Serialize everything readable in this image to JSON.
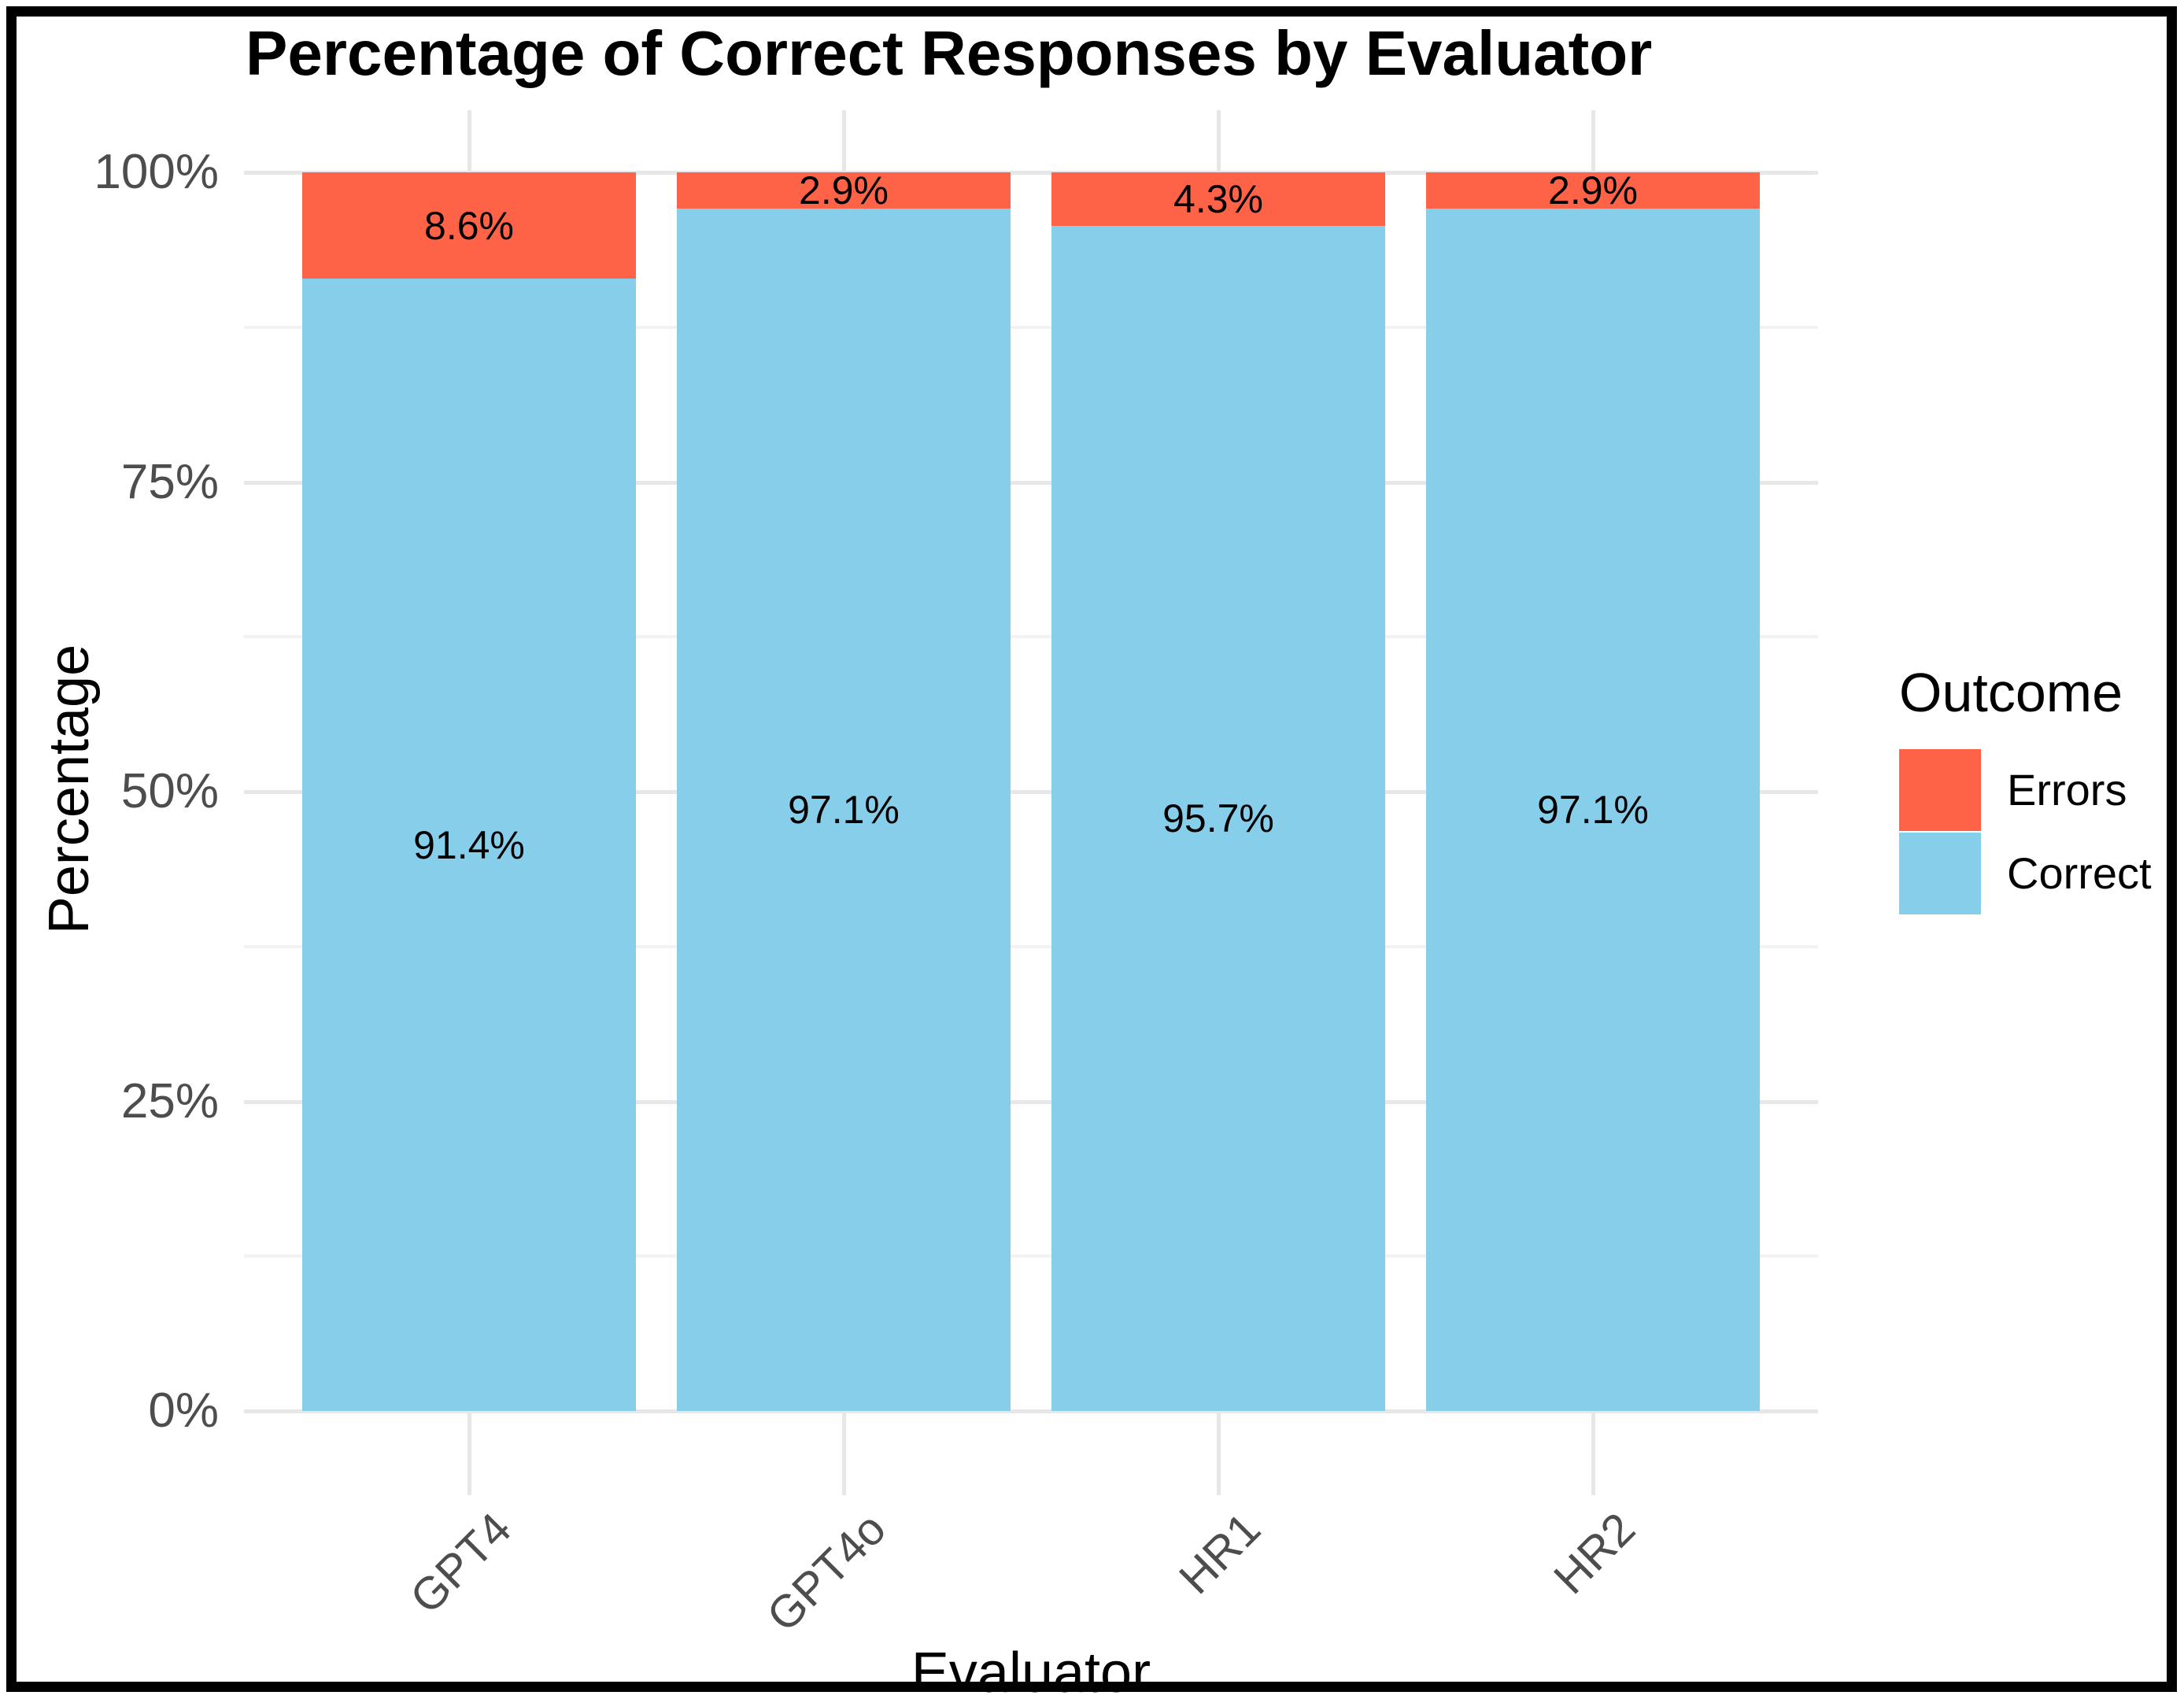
{
  "chart_data": {
    "type": "bar",
    "stacked": true,
    "title": "Percentage of Correct Responses by Evaluator",
    "xlabel": "Evaluator",
    "ylabel": "Percentage",
    "categories": [
      "GPT4",
      "GPT4o",
      "HR1",
      "HR2"
    ],
    "series": [
      {
        "name": "Errors",
        "color": "#FF6347",
        "values": [
          8.6,
          2.9,
          4.3,
          2.9
        ],
        "labels": [
          "8.6%",
          "2.9%",
          "4.3%",
          "2.9%"
        ]
      },
      {
        "name": "Correct",
        "color": "#87CEEB",
        "values": [
          91.4,
          97.1,
          95.7,
          97.1
        ],
        "labels": [
          "91.4%",
          "97.1%",
          "95.7%",
          "97.1%"
        ]
      }
    ],
    "ylim": [
      0,
      100
    ],
    "y_ticks": [
      {
        "label": "0%",
        "value": 0
      },
      {
        "label": "25%",
        "value": 25
      },
      {
        "label": "50%",
        "value": 50
      },
      {
        "label": "75%",
        "value": 75
      },
      {
        "label": "100%",
        "value": 100
      }
    ],
    "y_minor_breaks": [
      12.5,
      37.5,
      62.5,
      87.5
    ],
    "grid": true,
    "legend": {
      "title": "Outcome",
      "position": "right",
      "entries": [
        "Errors",
        "Correct"
      ]
    },
    "colors": {
      "errors": "#FF6347",
      "correct": "#87CEEB",
      "grid_major": "#E7E7E7",
      "grid_minor": "#F2F2F2",
      "axis_text": "#4D4D4D",
      "text": "#000000"
    }
  }
}
